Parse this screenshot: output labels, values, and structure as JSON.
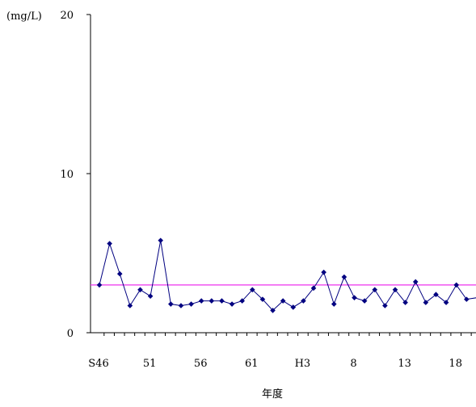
{
  "chart_data": {
    "type": "line",
    "unit_label": "(mg/L)",
    "xlabel": "年度",
    "ylabel": "",
    "ylim": [
      0,
      20
    ],
    "yticks": [
      "0",
      "10",
      "20"
    ],
    "x_tick_labels": [
      "S46",
      "51",
      "56",
      "61",
      "H3",
      "8",
      "13",
      "18"
    ],
    "x_tick_positions": [
      0,
      5,
      10,
      15,
      20,
      25,
      30,
      35
    ],
    "x_range": [
      0,
      37.5
    ],
    "series": [
      {
        "name": "",
        "color": "#000080",
        "values": [
          3.0,
          5.6,
          3.7,
          1.7,
          2.7,
          2.3,
          5.8,
          1.8,
          1.7,
          1.8,
          2.0,
          2.0,
          2.0,
          1.8,
          2.0,
          2.7,
          2.1,
          1.4,
          2.0,
          1.6,
          2.0,
          2.8,
          3.8,
          1.8,
          3.5,
          2.2,
          2.0,
          2.7,
          1.7,
          2.7,
          1.9,
          3.2,
          1.9,
          2.4,
          1.9,
          3.0,
          2.1,
          2.2
        ]
      }
    ],
    "reference_line": {
      "value": 3.0,
      "color": "#ee30ee"
    },
    "grid": false
  }
}
